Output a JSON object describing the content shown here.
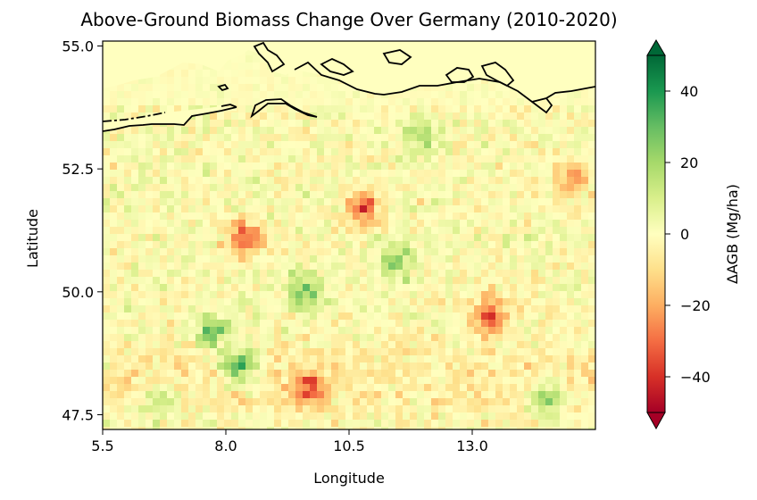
{
  "chart_data": {
    "type": "heatmap",
    "title": "Above-Ground Biomass Change Over Germany (2010-2020)",
    "xlabel": "Longitude",
    "ylabel": "Latitude",
    "xlim": [
      5.5,
      15.5
    ],
    "ylim": [
      47.2,
      55.1
    ],
    "xticks": [
      5.5,
      8.0,
      10.5,
      13.0
    ],
    "xtick_labels": [
      "5.5",
      "8.0",
      "10.5",
      "13.0"
    ],
    "yticks": [
      47.5,
      50.0,
      52.5,
      55.0
    ],
    "ytick_labels": [
      "47.5",
      "50.0",
      "52.5",
      "55.0"
    ],
    "colorbar": {
      "label": "ΔAGB (Mg/ha)",
      "range": [
        -50,
        50
      ],
      "ticks": [
        -40,
        -20,
        0,
        20,
        40
      ],
      "tick_labels": [
        "−40",
        "−20",
        "0",
        "20",
        "40"
      ],
      "extend": "both",
      "colormap": "RdYlGn",
      "colors": [
        "#a50026",
        "#d73027",
        "#f46d43",
        "#fdae61",
        "#fee08b",
        "#ffffbf",
        "#d9ef8b",
        "#a6d96a",
        "#66bd63",
        "#1a9850",
        "#006837"
      ]
    },
    "hotspots": [
      {
        "lon": 10.8,
        "lat": 51.7,
        "value": -45
      },
      {
        "lon": 8.4,
        "lat": 51.1,
        "value": -40
      },
      {
        "lon": 9.7,
        "lat": 48.0,
        "value": -35
      },
      {
        "lon": 8.3,
        "lat": 48.5,
        "value": 42
      },
      {
        "lon": 7.7,
        "lat": 49.2,
        "value": 35
      },
      {
        "lon": 9.6,
        "lat": 50.0,
        "value": 35
      },
      {
        "lon": 11.5,
        "lat": 50.6,
        "value": 28
      },
      {
        "lon": 13.4,
        "lat": 49.5,
        "value": -42
      },
      {
        "lon": 14.5,
        "lat": 47.8,
        "value": 30
      },
      {
        "lon": 15.0,
        "lat": 52.3,
        "value": -30
      },
      {
        "lon": 12.0,
        "lat": 53.1,
        "value": 20
      },
      {
        "lon": 6.7,
        "lat": 47.8,
        "value": 25
      }
    ]
  }
}
